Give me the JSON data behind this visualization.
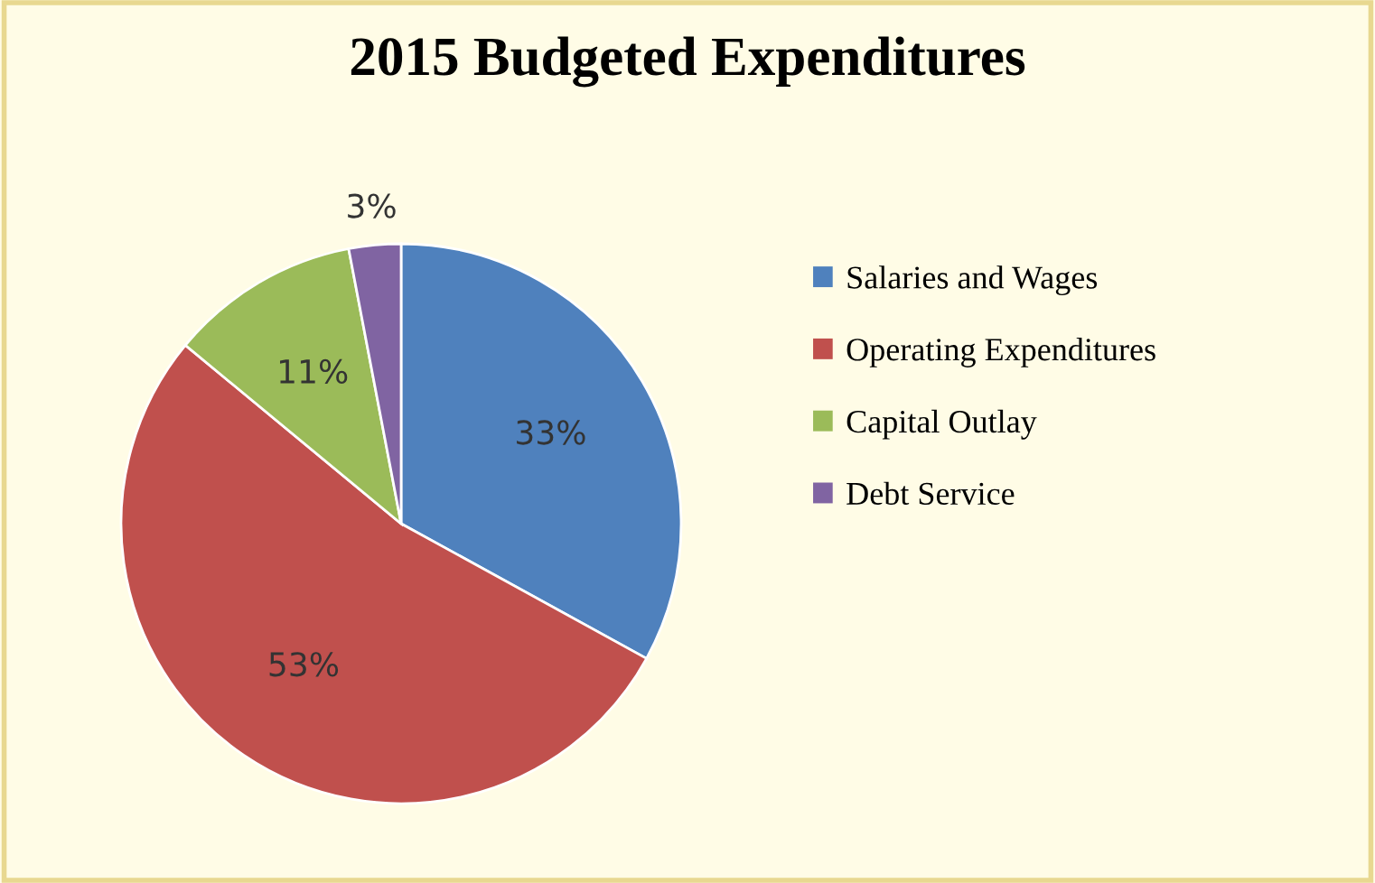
{
  "chart_data": {
    "type": "pie",
    "title": "2015 Budgeted Expenditures",
    "categories": [
      "Salaries and Wages",
      "Operating Expenditures",
      "Capital Outlay",
      "Debt Service"
    ],
    "values": [
      33,
      53,
      11,
      3
    ],
    "colors": [
      "#4f81bd",
      "#c0504d",
      "#9bbb59",
      "#8064a2"
    ],
    "value_labels": [
      "33%",
      "53%",
      "11%",
      "3%"
    ],
    "legend": "right"
  }
}
